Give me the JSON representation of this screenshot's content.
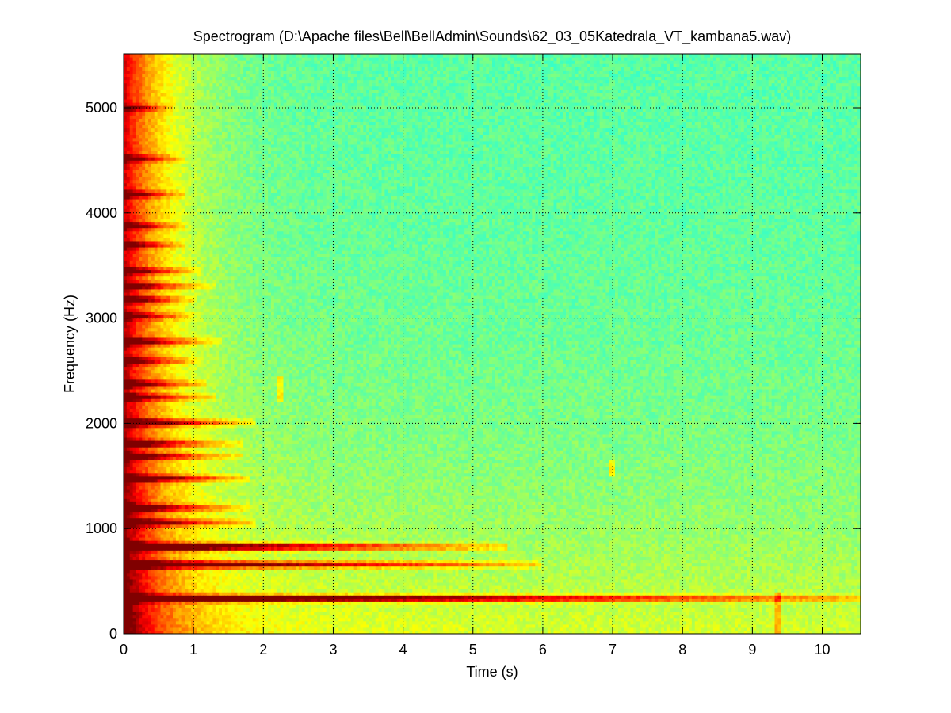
{
  "chart_data": {
    "type": "heatmap",
    "title": "Spectrogram (D:\\Apache files\\Bell\\BellAdmin\\Sounds\\62_03_05Katedrala_VT_kambana5.wav)",
    "xlabel": "Time (s)",
    "ylabel": "Frequency (Hz)",
    "xlim": [
      0,
      10.55
    ],
    "ylim": [
      0,
      5512
    ],
    "xticks": [
      0,
      1,
      2,
      3,
      4,
      5,
      6,
      7,
      8,
      9,
      10
    ],
    "yticks": [
      0,
      1000,
      2000,
      3000,
      4000,
      5000
    ],
    "grid": true,
    "colormap": "jet",
    "background_level": 0.46,
    "partials": [
      {
        "freq": 340,
        "decay_end": 10.55,
        "strength": 1.0
      },
      {
        "freq": 660,
        "decay_end": 6.0,
        "strength": 0.85
      },
      {
        "freq": 830,
        "decay_end": 5.5,
        "strength": 0.9
      },
      {
        "freq": 1060,
        "decay_end": 1.9,
        "strength": 0.6
      },
      {
        "freq": 1200,
        "decay_end": 1.8,
        "strength": 0.55
      },
      {
        "freq": 1480,
        "decay_end": 1.8,
        "strength": 0.7
      },
      {
        "freq": 1690,
        "decay_end": 1.7,
        "strength": 0.55
      },
      {
        "freq": 1810,
        "decay_end": 1.7,
        "strength": 0.55
      },
      {
        "freq": 2010,
        "decay_end": 1.9,
        "strength": 0.65
      },
      {
        "freq": 2250,
        "decay_end": 1.3,
        "strength": 0.5
      },
      {
        "freq": 2380,
        "decay_end": 1.2,
        "strength": 0.5
      },
      {
        "freq": 2600,
        "decay_end": 1.1,
        "strength": 0.45
      },
      {
        "freq": 2780,
        "decay_end": 1.4,
        "strength": 0.55
      },
      {
        "freq": 3020,
        "decay_end": 1.0,
        "strength": 0.45
      },
      {
        "freq": 3180,
        "decay_end": 1.0,
        "strength": 0.5
      },
      {
        "freq": 3310,
        "decay_end": 1.3,
        "strength": 0.5
      },
      {
        "freq": 3450,
        "decay_end": 1.1,
        "strength": 0.5
      },
      {
        "freq": 3700,
        "decay_end": 0.9,
        "strength": 0.45
      },
      {
        "freq": 3880,
        "decay_end": 0.9,
        "strength": 0.45
      },
      {
        "freq": 4180,
        "decay_end": 0.9,
        "strength": 0.45
      },
      {
        "freq": 4520,
        "decay_end": 0.9,
        "strength": 0.45
      },
      {
        "freq": 5000,
        "decay_end": 0.7,
        "strength": 0.4
      }
    ],
    "vertical_streaks": [
      {
        "time": 2.25,
        "freq_min": 2200,
        "freq_max": 2450
      },
      {
        "time": 7.0,
        "freq_min": 1500,
        "freq_max": 1650
      },
      {
        "time": 9.35,
        "freq_min": 0,
        "freq_max": 400
      }
    ]
  }
}
